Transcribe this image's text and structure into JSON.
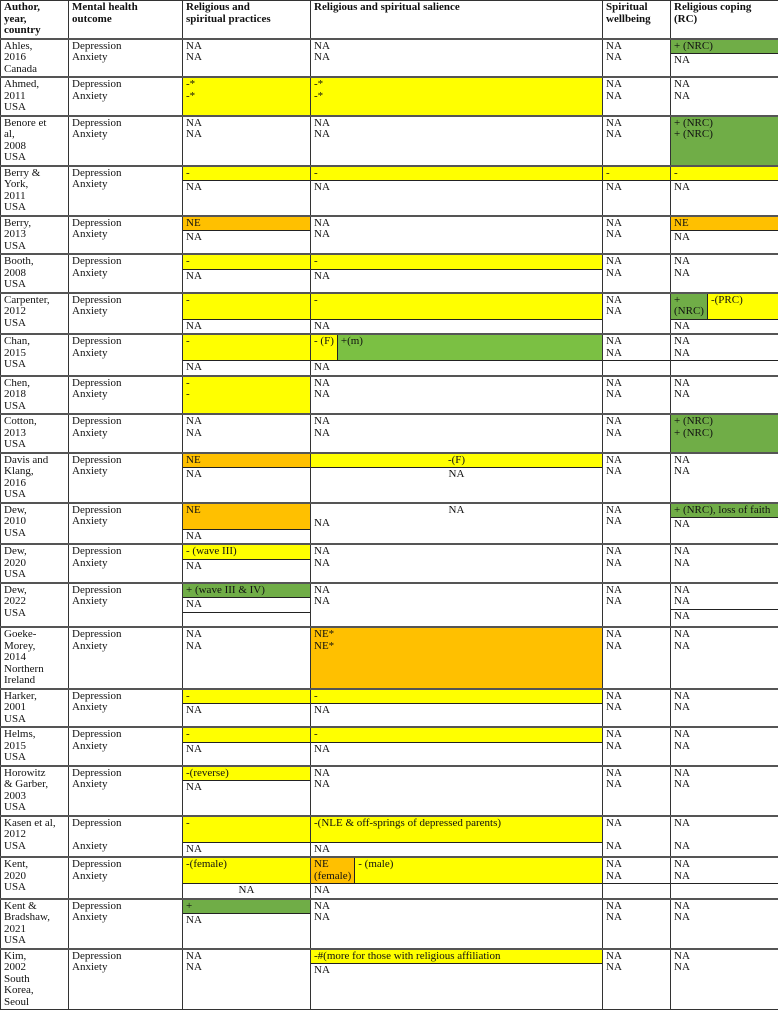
{
  "colors": {
    "yellow": "#ffff00",
    "orange": "#ffc000",
    "green": "#70ad47",
    "lightgreen": "#7bc043"
  },
  "headers": [
    [
      "Author,",
      "year,",
      "country"
    ],
    [
      "Mental health",
      "outcome"
    ],
    [
      "Religious and",
      "spiritual practices"
    ],
    [
      "Religious and spiritual salience"
    ],
    [
      "Spiritual",
      "wellbeing"
    ],
    [
      "Religious coping",
      "(RC)"
    ]
  ],
  "rows": [
    {
      "author": [
        "Ahles,",
        "2016",
        "Canada"
      ],
      "outcome": [
        "Depression",
        "Anxiety"
      ],
      "cells": [
        [
          {
            "lines": [
              "NA",
              "NA"
            ]
          }
        ],
        [
          {
            "lines": [
              "NA",
              "NA"
            ]
          }
        ],
        [
          {
            "lines": [
              "NA",
              "NA"
            ]
          }
        ],
        [
          {
            "lines": [
              "+ (NRC)"
            ],
            "color": "green"
          },
          {
            "lines": [
              "NA"
            ]
          }
        ]
      ]
    },
    {
      "author": [
        "Ahmed,",
        "2011",
        "USA"
      ],
      "outcome": [
        "Depression",
        "Anxiety"
      ],
      "cells": [
        [
          {
            "lines": [
              "-*",
              "-*"
            ],
            "color": "yellow"
          }
        ],
        [
          {
            "lines": [
              "-*",
              "-*"
            ],
            "color": "yellow"
          }
        ],
        [
          {
            "lines": [
              "NA",
              "NA"
            ]
          }
        ],
        [
          {
            "lines": [
              "NA",
              "NA"
            ]
          }
        ]
      ]
    },
    {
      "author": [
        "Benore et",
        "al,",
        "2008",
        "USA"
      ],
      "outcome": [
        "Depression",
        "Anxiety"
      ],
      "cells": [
        [
          {
            "lines": [
              "NA",
              "NA"
            ]
          }
        ],
        [
          {
            "lines": [
              "NA",
              "NA"
            ]
          }
        ],
        [
          {
            "lines": [
              "NA",
              "NA"
            ]
          }
        ],
        [
          {
            "lines": [
              "+ (NRC)",
              "+ (NRC)"
            ],
            "color": "green"
          }
        ]
      ]
    },
    {
      "author": [
        "Berry &",
        "York,",
        "2011",
        "USA"
      ],
      "outcome": [
        "Depression",
        "Anxiety"
      ],
      "cells": [
        [
          {
            "lines": [
              "-"
            ],
            "color": "yellow"
          },
          {
            "lines": [
              "NA"
            ]
          }
        ],
        [
          {
            "lines": [
              "-"
            ],
            "color": "yellow"
          },
          {
            "lines": [
              "NA"
            ]
          }
        ],
        [
          {
            "lines": [
              "-"
            ],
            "color": "yellow"
          },
          {
            "lines": [
              "NA"
            ]
          }
        ],
        [
          {
            "lines": [
              "-"
            ],
            "color": "yellow"
          },
          {
            "lines": [
              "NA"
            ]
          }
        ]
      ]
    },
    {
      "author": [
        "Berry,",
        "2013",
        "USA"
      ],
      "outcome": [
        "Depression",
        "Anxiety"
      ],
      "cells": [
        [
          {
            "lines": [
              "NE"
            ],
            "color": "orange"
          },
          {
            "lines": [
              "NA"
            ]
          }
        ],
        [
          {
            "lines": [
              "NA",
              "NA"
            ]
          }
        ],
        [
          {
            "lines": [
              "NA",
              "NA"
            ]
          }
        ],
        [
          {
            "lines": [
              "NE"
            ],
            "color": "orange"
          },
          {
            "lines": [
              "NA"
            ]
          }
        ]
      ]
    },
    {
      "author": [
        "Booth,",
        "2008",
        "USA"
      ],
      "outcome": [
        "Depression",
        "Anxiety"
      ],
      "cells": [
        [
          {
            "lines": [
              "-"
            ],
            "color": "yellow"
          },
          {
            "lines": [
              "NA"
            ]
          }
        ],
        [
          {
            "lines": [
              "-"
            ],
            "color": "yellow"
          },
          {
            "lines": [
              "NA"
            ]
          }
        ],
        [
          {
            "lines": [
              "NA",
              "NA"
            ]
          }
        ],
        [
          {
            "lines": [
              "NA",
              "NA"
            ]
          }
        ]
      ]
    },
    {
      "author": [
        "Carpenter,",
        "2012",
        "USA"
      ],
      "outcome": [
        "Depression",
        "Anxiety"
      ],
      "cells": [
        [
          {
            "lines": [
              "-",
              ""
            ],
            "color": "yellow"
          },
          {
            "lines": [
              "NA"
            ]
          }
        ],
        [
          {
            "lines": [
              "-",
              ""
            ],
            "color": "yellow"
          },
          {
            "lines": [
              "NA"
            ]
          }
        ],
        [
          {
            "lines": [
              "NA",
              "NA"
            ]
          }
        ],
        [
          {
            "parts": [
              {
                "lines": [
                  "+",
                  "(NRC)"
                ],
                "color": "green"
              },
              {
                "lines": [
                  "-(PRC)"
                ],
                "color": "yellow"
              }
            ]
          },
          {
            "lines": [
              "NA"
            ]
          }
        ]
      ]
    },
    {
      "author": [
        "Chan,",
        "2015",
        "USA"
      ],
      "outcome": [
        "Depression",
        "Anxiety"
      ],
      "cells": [
        [
          {
            "lines": [
              "-",
              ""
            ],
            "color": "yellow"
          },
          {
            "lines": [
              "NA"
            ]
          }
        ],
        [
          {
            "parts": [
              {
                "lines": [
                  "- (F)",
                  ""
                ],
                "color": "yellow"
              },
              {
                "lines": [
                  "+(m)"
                ],
                "color": "lightgreen"
              }
            ]
          },
          {
            "lines": [
              "NA"
            ]
          }
        ],
        [
          {
            "lines": [
              "NA",
              "NA"
            ]
          },
          {
            "lines": [
              ""
            ]
          }
        ],
        [
          {
            "lines": [
              "NA",
              "NA"
            ]
          },
          {
            "lines": [
              ""
            ]
          }
        ]
      ]
    },
    {
      "author": [
        "Chen,",
        "2018",
        "USA"
      ],
      "outcome": [
        "Depression",
        "Anxiety"
      ],
      "cells": [
        [
          {
            "lines": [
              "-",
              "-"
            ],
            "color": "yellow"
          }
        ],
        [
          {
            "lines": [
              "NA",
              "NA"
            ]
          }
        ],
        [
          {
            "lines": [
              "NA",
              "NA"
            ]
          }
        ],
        [
          {
            "lines": [
              "NA",
              "NA"
            ]
          }
        ]
      ]
    },
    {
      "author": [
        "Cotton,",
        "2013",
        "USA"
      ],
      "outcome": [
        "Depression",
        "Anxiety"
      ],
      "cells": [
        [
          {
            "lines": [
              "NA",
              "NA"
            ]
          }
        ],
        [
          {
            "lines": [
              "NA",
              "NA"
            ]
          }
        ],
        [
          {
            "lines": [
              "NA",
              "NA"
            ]
          }
        ],
        [
          {
            "lines": [
              "+ (NRC)",
              "+ (NRC)"
            ],
            "color": "green"
          }
        ]
      ]
    },
    {
      "author": [
        "Davis and",
        "Klang,",
        "2016",
        "USA"
      ],
      "outcome": [
        "Depression",
        "Anxiety"
      ],
      "cells": [
        [
          {
            "lines": [
              "NE"
            ],
            "color": "orange"
          },
          {
            "lines": [
              "NA"
            ]
          }
        ],
        [
          {
            "lines": [
              "-(F)"
            ],
            "color": "yellow"
          },
          {
            "lines": [
              "NA"
            ]
          }
        ],
        [
          {
            "lines": [
              "NA",
              "NA"
            ]
          }
        ],
        [
          {
            "lines": [
              "NA",
              "NA"
            ]
          }
        ]
      ]
    },
    {
      "author": [
        "Dew,",
        "2010",
        "USA"
      ],
      "outcome": [
        "Depression",
        "Anxiety"
      ],
      "cells": [
        [
          {
            "lines": [
              "NE",
              ""
            ],
            "color": "orange"
          },
          {
            "lines": [
              "NA"
            ]
          }
        ],
        [
          {
            "lines": [
              "NA"
            ]
          },
          {
            "lines": [
              "NA"
            ]
          }
        ],
        [
          {
            "lines": [
              "NA",
              "NA"
            ]
          }
        ],
        [
          {
            "lines": [
              "+ (NRC), loss of faith"
            ],
            "color": "green"
          },
          {
            "lines": [
              "NA"
            ]
          }
        ]
      ]
    },
    {
      "author": [
        "Dew,",
        "2020",
        "USA"
      ],
      "outcome": [
        "Depression",
        "Anxiety"
      ],
      "cells": [
        [
          {
            "lines": [
              "- (wave III)"
            ],
            "color": "yellow"
          },
          {
            "lines": [
              "NA"
            ]
          }
        ],
        [
          {
            "lines": [
              "NA",
              "NA"
            ]
          }
        ],
        [
          {
            "lines": [
              "NA",
              "NA"
            ]
          }
        ],
        [
          {
            "lines": [
              "NA",
              "NA"
            ]
          }
        ]
      ]
    },
    {
      "author": [
        "Dew,",
        "2022",
        "USA"
      ],
      "outcome": [
        "Depression",
        "Anxiety"
      ],
      "cells": [
        [
          {
            "lines": [
              "+ (wave III & IV)"
            ],
            "color": "green"
          },
          {
            "lines": [
              "NA"
            ]
          },
          {
            "lines": [
              ""
            ]
          }
        ],
        [
          {
            "lines": [
              "NA",
              "NA"
            ]
          }
        ],
        [
          {
            "lines": [
              "NA",
              "NA"
            ]
          }
        ],
        [
          {
            "lines": [
              "NA",
              "NA"
            ]
          },
          {
            "lines": [
              "NA"
            ]
          }
        ]
      ]
    },
    {
      "author": [
        "Goeke-",
        "Morey,",
        "2014",
        "Northern",
        "Ireland"
      ],
      "outcome": [
        "Depression",
        "Anxiety"
      ],
      "cells": [
        [
          {
            "lines": [
              "NA",
              "NA"
            ]
          }
        ],
        [
          {
            "lines": [
              "NE*",
              "NE*"
            ],
            "color": "orange"
          }
        ],
        [
          {
            "lines": [
              "NA",
              "NA"
            ]
          }
        ],
        [
          {
            "lines": [
              "NA",
              "NA"
            ]
          }
        ]
      ]
    },
    {
      "author": [
        "Harker,",
        "2001",
        "USA"
      ],
      "outcome": [
        "Depression",
        "Anxiety"
      ],
      "cells": [
        [
          {
            "lines": [
              "-"
            ],
            "color": "yellow"
          },
          {
            "lines": [
              "NA"
            ]
          }
        ],
        [
          {
            "lines": [
              "-"
            ],
            "color": "yellow"
          },
          {
            "lines": [
              "NA"
            ]
          }
        ],
        [
          {
            "lines": [
              "NA",
              "NA"
            ]
          }
        ],
        [
          {
            "lines": [
              "NA",
              "NA"
            ]
          }
        ]
      ]
    },
    {
      "author": [
        "Helms,",
        "2015",
        "USA"
      ],
      "outcome": [
        "Depression",
        "Anxiety"
      ],
      "cells": [
        [
          {
            "lines": [
              "-"
            ],
            "color": "yellow"
          },
          {
            "lines": [
              "NA"
            ]
          }
        ],
        [
          {
            "lines": [
              "-"
            ],
            "color": "yellow"
          },
          {
            "lines": [
              "NA"
            ]
          }
        ],
        [
          {
            "lines": [
              "NA",
              "NA"
            ]
          }
        ],
        [
          {
            "lines": [
              "NA",
              "NA"
            ]
          }
        ]
      ]
    },
    {
      "author": [
        "Horowitz",
        "& Garber,",
        "2003",
        "USA"
      ],
      "outcome": [
        "Depression",
        "Anxiety"
      ],
      "cells": [
        [
          {
            "lines": [
              "-(reverse)"
            ],
            "color": "yellow"
          },
          {
            "lines": [
              "NA"
            ]
          }
        ],
        [
          {
            "lines": [
              "NA",
              "NA"
            ]
          }
        ],
        [
          {
            "lines": [
              "NA",
              "NA"
            ]
          }
        ],
        [
          {
            "lines": [
              "NA",
              "NA"
            ]
          }
        ]
      ]
    },
    {
      "author": [
        "Kasen et al,",
        "2012",
        "USA"
      ],
      "outcome": [
        "Depression",
        "",
        "Anxiety"
      ],
      "cells": [
        [
          {
            "lines": [
              "-",
              ""
            ],
            "color": "yellow"
          },
          {
            "lines": [
              "NA"
            ]
          }
        ],
        [
          {
            "lines": [
              "-(NLE & off-springs of depressed parents)",
              ""
            ],
            "color": "yellow"
          },
          {
            "lines": [
              "NA"
            ]
          }
        ],
        [
          {
            "lines": [
              "NA",
              "",
              "NA"
            ]
          }
        ],
        [
          {
            "lines": [
              "NA",
              "",
              "NA"
            ]
          }
        ]
      ]
    },
    {
      "author": [
        "Kent,",
        "2020",
        "USA"
      ],
      "outcome": [
        "Depression",
        "Anxiety"
      ],
      "cells": [
        [
          {
            "lines": [
              "-(female)",
              ""
            ],
            "color": "yellow"
          },
          {
            "lines": [
              "NA"
            ]
          }
        ],
        [
          {
            "parts": [
              {
                "lines": [
                  "NE",
                  "(female)"
                ],
                "color": "orange"
              },
              {
                "lines": [
                  "- (male)"
                ],
                "color": "yellow"
              }
            ]
          },
          {
            "lines": [
              "NA"
            ]
          }
        ],
        [
          {
            "lines": [
              "NA",
              "NA"
            ]
          },
          {
            "lines": [
              ""
            ]
          }
        ],
        [
          {
            "lines": [
              "NA",
              "NA"
            ]
          },
          {
            "lines": [
              ""
            ]
          }
        ]
      ]
    },
    {
      "author": [
        "Kent &",
        "Bradshaw,",
        "2021",
        "USA"
      ],
      "outcome": [
        "Depression",
        "Anxiety"
      ],
      "cells": [
        [
          {
            "lines": [
              "+"
            ],
            "color": "green"
          },
          {
            "lines": [
              "NA"
            ]
          }
        ],
        [
          {
            "lines": [
              "NA",
              "NA"
            ]
          }
        ],
        [
          {
            "lines": [
              "NA",
              "NA"
            ]
          }
        ],
        [
          {
            "lines": [
              "NA",
              "NA"
            ]
          }
        ]
      ]
    },
    {
      "author": [
        "Kim,",
        "2002",
        "South",
        "Korea,",
        "Seoul"
      ],
      "outcome": [
        "Depression",
        "Anxiety"
      ],
      "cells": [
        [
          {
            "lines": [
              "NA",
              "NA"
            ]
          }
        ],
        [
          {
            "lines": [
              "-#(more for those with religious affiliation"
            ],
            "color": "yellow"
          },
          {
            "lines": [
              "NA"
            ]
          }
        ],
        [
          {
            "lines": [
              "NA",
              "NA"
            ]
          }
        ],
        [
          {
            "lines": [
              "NA",
              "NA"
            ]
          }
        ]
      ]
    }
  ]
}
